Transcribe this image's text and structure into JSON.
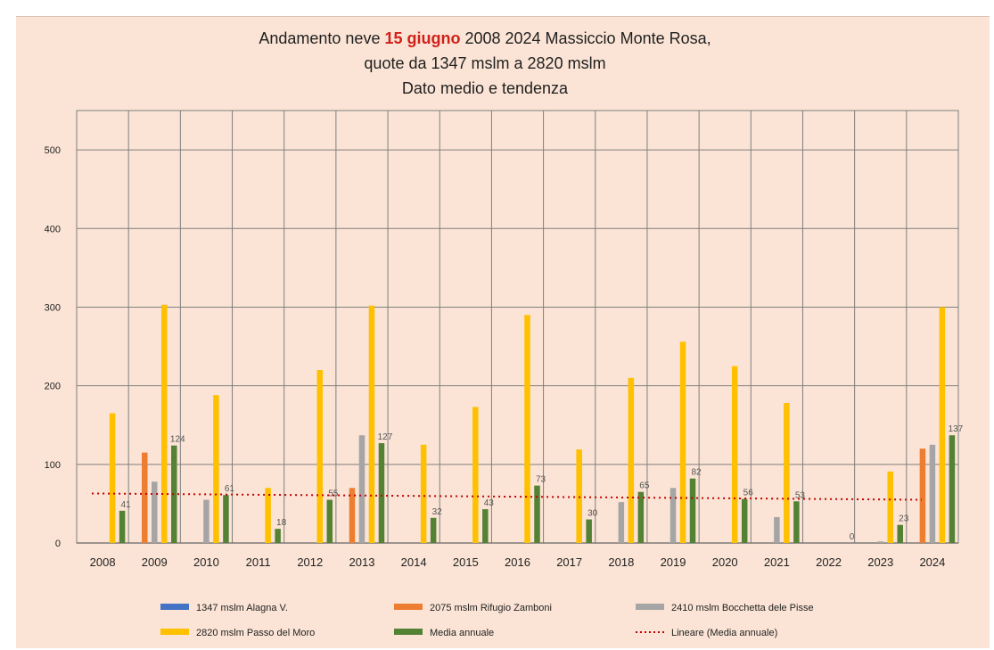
{
  "title": {
    "line1_pre": "Andamento neve ",
    "line1_highlight": "15 giugno",
    "line1_post": " 2008 2024 Massiccio Monte Rosa,",
    "line2": "quote da 1347 mslm a 2820 mslm",
    "line3": "Dato medio e tendenza"
  },
  "colors": {
    "background": "#fbe4d5",
    "grid": "#7f7f7f",
    "highlight": "#d0201a"
  },
  "chart_data": {
    "type": "bar",
    "categories": [
      "2008",
      "2009",
      "2010",
      "2011",
      "2012",
      "2013",
      "2014",
      "2015",
      "2016",
      "2017",
      "2018",
      "2019",
      "2020",
      "2021",
      "2022",
      "2023",
      "2024"
    ],
    "ylim": [
      0,
      550
    ],
    "yticks": [
      0,
      100,
      200,
      300,
      400,
      500
    ],
    "grid": true,
    "legend_position": "bottom",
    "series": [
      {
        "name": "1347 mslm Alagna V.",
        "color": "#4472c4",
        "values": [
          0,
          0,
          0,
          0,
          0,
          0,
          0,
          0,
          0,
          0,
          0,
          0,
          0,
          0,
          0,
          0,
          0
        ]
      },
      {
        "name": "2075 mslm Rifugio Zamboni",
        "color": "#ed7d31",
        "values": [
          0,
          115,
          0,
          0,
          0,
          70,
          0,
          0,
          0,
          0,
          0,
          0,
          0,
          0,
          0,
          0,
          120
        ]
      },
      {
        "name": "2410 mslm Bocchetta dele Pisse",
        "color": "#a5a5a5",
        "values": [
          0,
          78,
          55,
          0,
          0,
          137,
          0,
          0,
          0,
          0,
          52,
          70,
          0,
          33,
          0,
          2,
          125
        ]
      },
      {
        "name": "2820 mslm Passo del Moro",
        "color": "#ffc000",
        "values": [
          165,
          303,
          188,
          70,
          220,
          302,
          125,
          173,
          290,
          119,
          210,
          256,
          225,
          178,
          0,
          91,
          300
        ]
      },
      {
        "name": "Media annuale",
        "color": "#548235",
        "values": [
          41,
          124,
          61,
          18,
          55,
          127,
          32,
          43,
          73,
          30,
          65,
          82,
          56,
          53,
          0,
          23,
          137
        ],
        "labels": [
          "41",
          "124",
          "61",
          "18",
          "55",
          "127",
          "32",
          "43",
          "73",
          "30",
          "65",
          "82",
          "56",
          "53",
          "0",
          "23",
          "137"
        ]
      }
    ],
    "trendline": {
      "name": "Lineare (Media annuale)",
      "color": "#c00000",
      "start": 63,
      "end": 55
    }
  }
}
